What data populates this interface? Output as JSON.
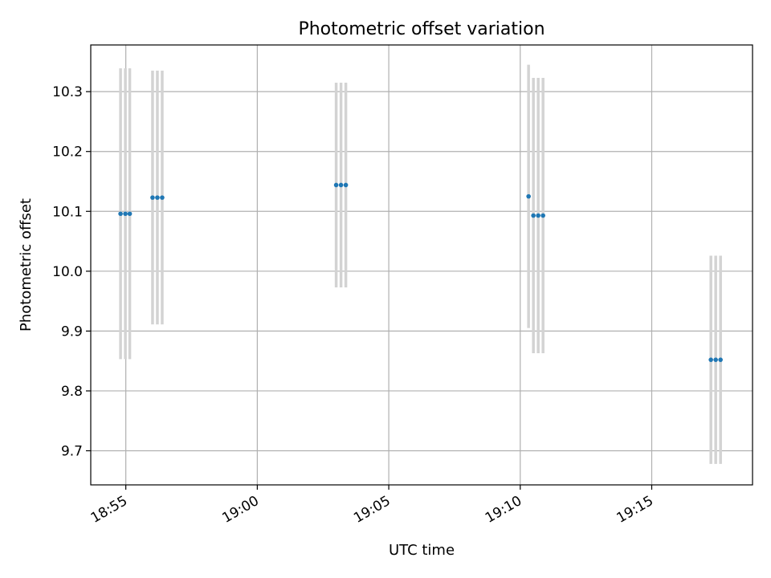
{
  "chart_data": {
    "type": "scatter",
    "title": "Photometric offset variation",
    "xlabel": "UTC time",
    "ylabel": "Photometric offset",
    "x_ticks": [
      "18:55",
      "19:00",
      "19:05",
      "19:10",
      "19:15"
    ],
    "y_ticks": [
      "9.7",
      "9.8",
      "9.9",
      "10.0",
      "10.1",
      "10.2",
      "10.3"
    ],
    "xlim": [
      "18:53:40",
      "19:18:50"
    ],
    "ylim": [
      9.643,
      10.378
    ],
    "grid": true,
    "point_color": "#1f77b4",
    "errorbar_color": "#d3d3d3",
    "points": [
      {
        "x": "18:54:48",
        "y": 10.096,
        "err": 0.243
      },
      {
        "x": "18:54:59",
        "y": 10.096,
        "err": 0.243
      },
      {
        "x": "18:55:09",
        "y": 10.096,
        "err": 0.243
      },
      {
        "x": "18:56:01",
        "y": 10.123,
        "err": 0.212
      },
      {
        "x": "18:56:12",
        "y": 10.123,
        "err": 0.212
      },
      {
        "x": "18:56:23",
        "y": 10.123,
        "err": 0.212
      },
      {
        "x": "19:03:00",
        "y": 10.144,
        "err": 0.171
      },
      {
        "x": "19:03:11",
        "y": 10.144,
        "err": 0.171
      },
      {
        "x": "19:03:22",
        "y": 10.144,
        "err": 0.171
      },
      {
        "x": "19:10:19",
        "y": 10.125,
        "err": 0.22
      },
      {
        "x": "19:10:30",
        "y": 10.093,
        "err": 0.23
      },
      {
        "x": "19:10:41",
        "y": 10.093,
        "err": 0.23
      },
      {
        "x": "19:10:52",
        "y": 10.093,
        "err": 0.23
      },
      {
        "x": "19:17:15",
        "y": 9.852,
        "err": 0.174
      },
      {
        "x": "19:17:26",
        "y": 9.852,
        "err": 0.174
      },
      {
        "x": "19:17:37",
        "y": 9.852,
        "err": 0.174
      }
    ]
  }
}
